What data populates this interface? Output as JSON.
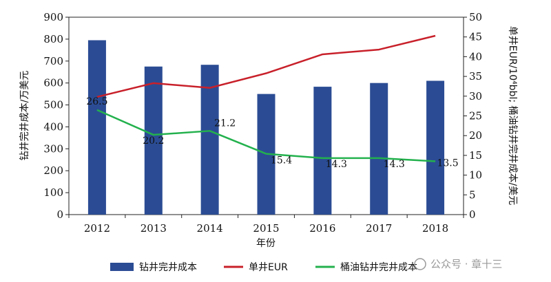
{
  "chart_data": {
    "type": "bar",
    "xlabel": "年份",
    "ylabel_left": "钻井完井成本/万美元",
    "ylabel_right": "单井EUR/10⁴bbl; 桶油钻井完井成本/美元",
    "ylim_left": [
      0,
      900
    ],
    "ylim_right": [
      0,
      50
    ],
    "left_ticks": [
      "0",
      "100",
      "200",
      "300",
      "400",
      "500",
      "600",
      "700",
      "800",
      "900"
    ],
    "right_ticks": [
      "0",
      "5",
      "10",
      "15",
      "20",
      "25",
      "30",
      "35",
      "40",
      "45",
      "50"
    ],
    "categories": [
      "2012",
      "2013",
      "2014",
      "2015",
      "2016",
      "2017",
      "2018"
    ],
    "series": [
      {
        "name": "钻井完井成本",
        "type": "bar",
        "axis": "left",
        "color": "#2b4c94",
        "values": [
          795,
          675,
          683,
          550,
          583,
          600,
          610
        ]
      },
      {
        "name": "单井EUR",
        "type": "line",
        "axis": "right",
        "color": "#c8202a",
        "values": [
          29.8,
          33.3,
          32.1,
          35.8,
          40.6,
          41.8,
          45.3
        ]
      },
      {
        "name": "桶油钻井完井成本",
        "type": "line",
        "axis": "right",
        "color": "#23b14d",
        "values": [
          26.5,
          20.2,
          21.2,
          15.4,
          14.3,
          14.3,
          13.5
        ],
        "labels": [
          "26.5",
          "20.2",
          "21.2",
          "15.4",
          "14.3",
          "14.3",
          "13.5"
        ]
      }
    ],
    "grid": false,
    "legend_position": "bottom"
  },
  "watermark": "公众号 · 章十三"
}
